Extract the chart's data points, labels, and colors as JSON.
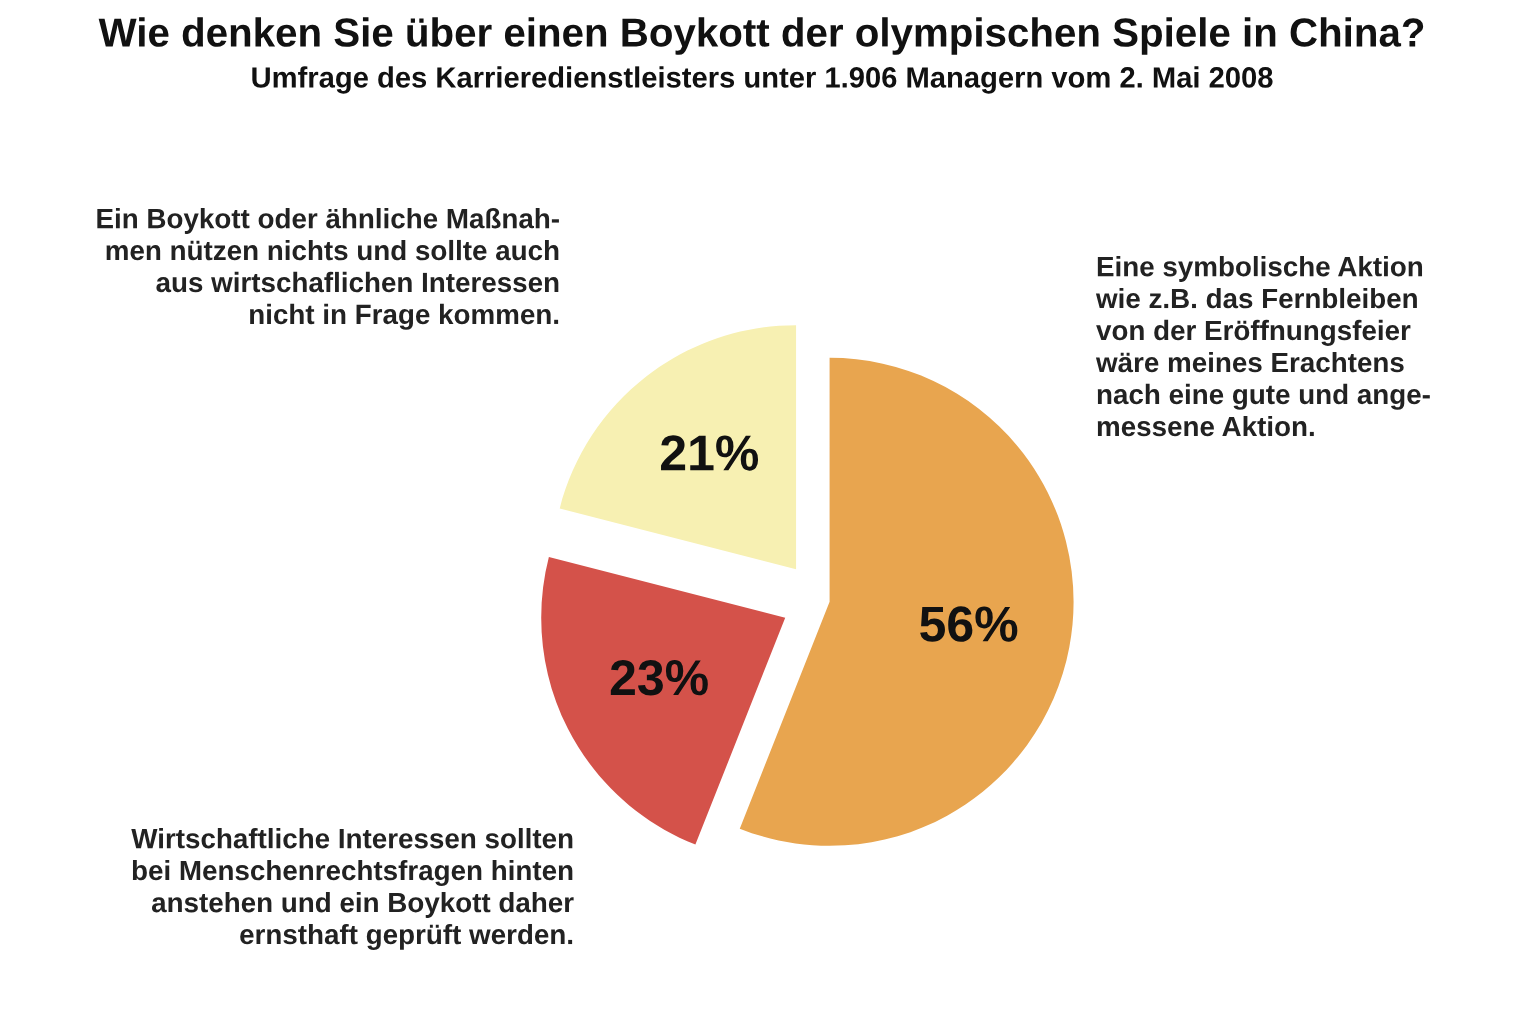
{
  "chart_data": {
    "type": "pie",
    "title": "Wie denken Sie über einen Boykott der olympischen Spiele in China?",
    "subtitle": "Umfrage des Karrieredienstleisters unter 1.906 Managern vom 2. Mai 2008",
    "categories": [
      "Eine symbolische Aktion\nwie z.B. das Fernbleiben\nvon der Eröffnungsfeier\nwäre meines Erachtens\nnach eine gute und ange-\nmessene Aktion.",
      "Wirtschaftliche Interessen sollten\nbei Menschenrechtsfragen hinten\nanstehen und ein Boykott daher\nernsthaft geprüft werden.",
      "Ein Boykott oder ähnliche Maßnah-\nmen nützen nichts und sollte auch\naus wirtschaflichen Interessen\nnicht in Frage kommen."
    ],
    "values": [
      56,
      23,
      21
    ],
    "colors": [
      "#e8a54f",
      "#d4524a",
      "#f7f0b2"
    ],
    "value_labels": [
      "56%",
      "23%",
      "21%"
    ]
  }
}
